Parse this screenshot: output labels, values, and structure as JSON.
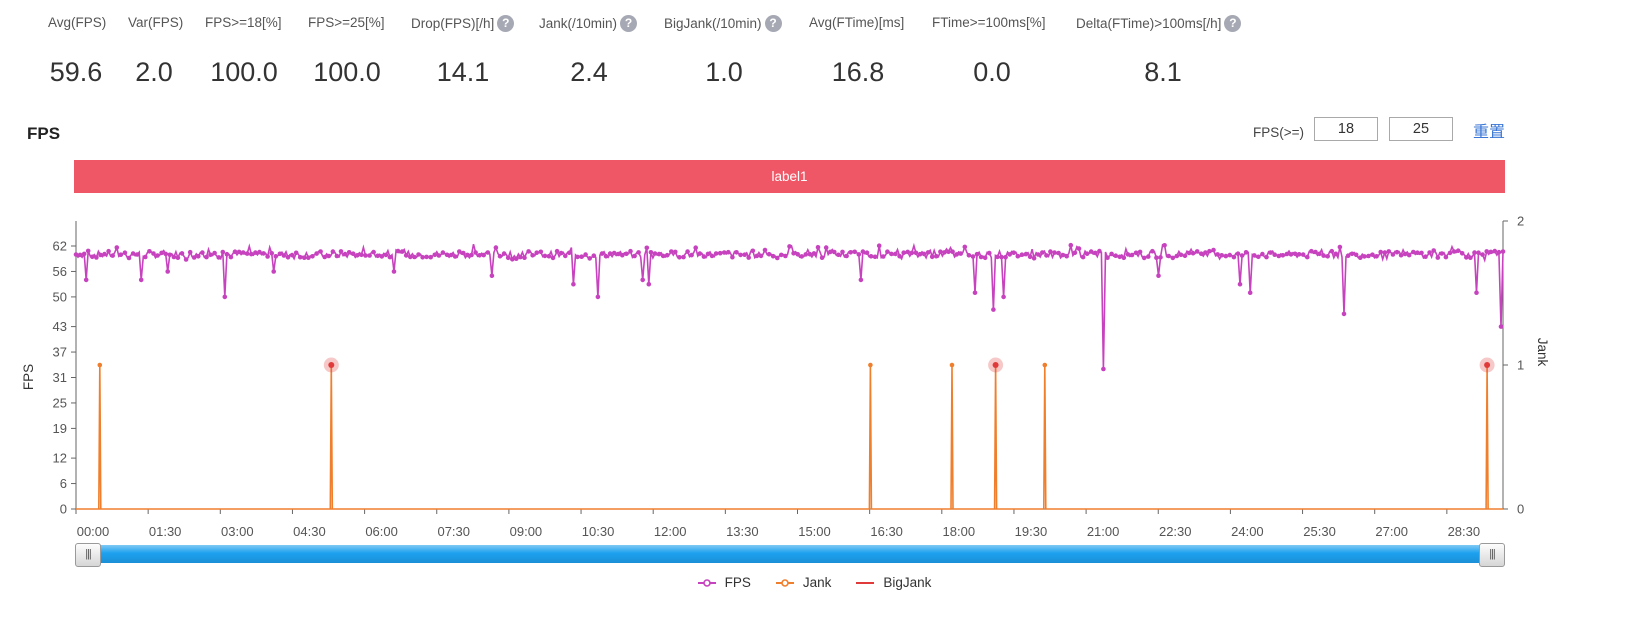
{
  "metrics": [
    {
      "label": "Avg(FPS)",
      "value": "59.6",
      "help": false
    },
    {
      "label": "Var(FPS)",
      "value": "2.0",
      "help": false
    },
    {
      "label": "FPS>=18[%]",
      "value": "100.0",
      "help": false
    },
    {
      "label": "FPS>=25[%]",
      "value": "100.0",
      "help": false
    },
    {
      "label": "Drop(FPS)[/h]",
      "value": "14.1",
      "help": true
    },
    {
      "label": "Jank(/10min)",
      "value": "2.4",
      "help": true
    },
    {
      "label": "BigJank(/10min)",
      "value": "1.0",
      "help": true
    },
    {
      "label": "Avg(FTime)[ms]",
      "value": "16.8",
      "help": false
    },
    {
      "label": "FTime>=100ms[%]",
      "value": "0.0",
      "help": false
    },
    {
      "label": "Delta(FTime)>100ms[/h]",
      "value": "8.1",
      "help": true
    }
  ],
  "help_glyph": "?",
  "section_title": "FPS",
  "threshold": {
    "label": "FPS(>=)",
    "low": "18",
    "high": "25",
    "reset_label": "重置"
  },
  "label_bar": {
    "text": "label1",
    "color": "#ef5766"
  },
  "slider": {
    "handle_glyph": "|||",
    "start": 0,
    "end": 1
  },
  "legend": [
    {
      "name": "FPS",
      "color": "#c742be",
      "marker": "circle"
    },
    {
      "name": "Jank",
      "color": "#f07f2d",
      "marker": "circle"
    },
    {
      "name": "BigJank",
      "color": "#e03a3a",
      "marker": "line"
    }
  ],
  "chart_data": {
    "type": "line",
    "xlabel": "",
    "ylabel": "FPS",
    "y2label": "Jank",
    "x_unit": "minutes",
    "xlim": [
      0,
      1800
    ],
    "ylim": [
      0,
      68
    ],
    "y2lim": [
      0,
      2
    ],
    "x_tick_labels": [
      "00:00",
      "01:30",
      "03:00",
      "04:30",
      "06:00",
      "07:30",
      "09:00",
      "10:30",
      "12:00",
      "13:30",
      "15:00",
      "16:30",
      "18:00",
      "19:30",
      "21:00",
      "22:30",
      "24:00",
      "25:30",
      "27:00",
      "28:30"
    ],
    "y_ticks": [
      0,
      6,
      12,
      19,
      25,
      31,
      37,
      43,
      50,
      56,
      62
    ],
    "y2_ticks": [
      0,
      1,
      2
    ],
    "fps_baseline": 60,
    "fps_dips": [
      {
        "t": 20,
        "fps": 54
      },
      {
        "t": 140,
        "fps": 54
      },
      {
        "t": 200,
        "fps": 56
      },
      {
        "t": 322,
        "fps": 50
      },
      {
        "t": 430,
        "fps": 56
      },
      {
        "t": 690,
        "fps": 56
      },
      {
        "t": 900,
        "fps": 55
      },
      {
        "t": 1078,
        "fps": 53
      },
      {
        "t": 1130,
        "fps": 50
      },
      {
        "t": 1225,
        "fps": 54
      },
      {
        "t": 1240,
        "fps": 53
      },
      {
        "t": 1700,
        "fps": 54
      },
      {
        "t": 1945,
        "fps": 51
      },
      {
        "t": 1985,
        "fps": 47
      },
      {
        "t": 2005,
        "fps": 50
      },
      {
        "t": 2222,
        "fps": 33
      },
      {
        "t": 2340,
        "fps": 55
      },
      {
        "t": 2520,
        "fps": 53
      },
      {
        "t": 2540,
        "fps": 51
      },
      {
        "t": 2745,
        "fps": 46
      },
      {
        "t": 3028,
        "fps": 51
      },
      {
        "t": 3082,
        "fps": 43
      }
    ],
    "fps_pos_to_time": 0.583,
    "jank_events": [
      30,
      322,
      1002,
      1105,
      1160,
      1222,
      1780
    ],
    "bigjank_events": [
      322,
      1160,
      1780
    ]
  }
}
